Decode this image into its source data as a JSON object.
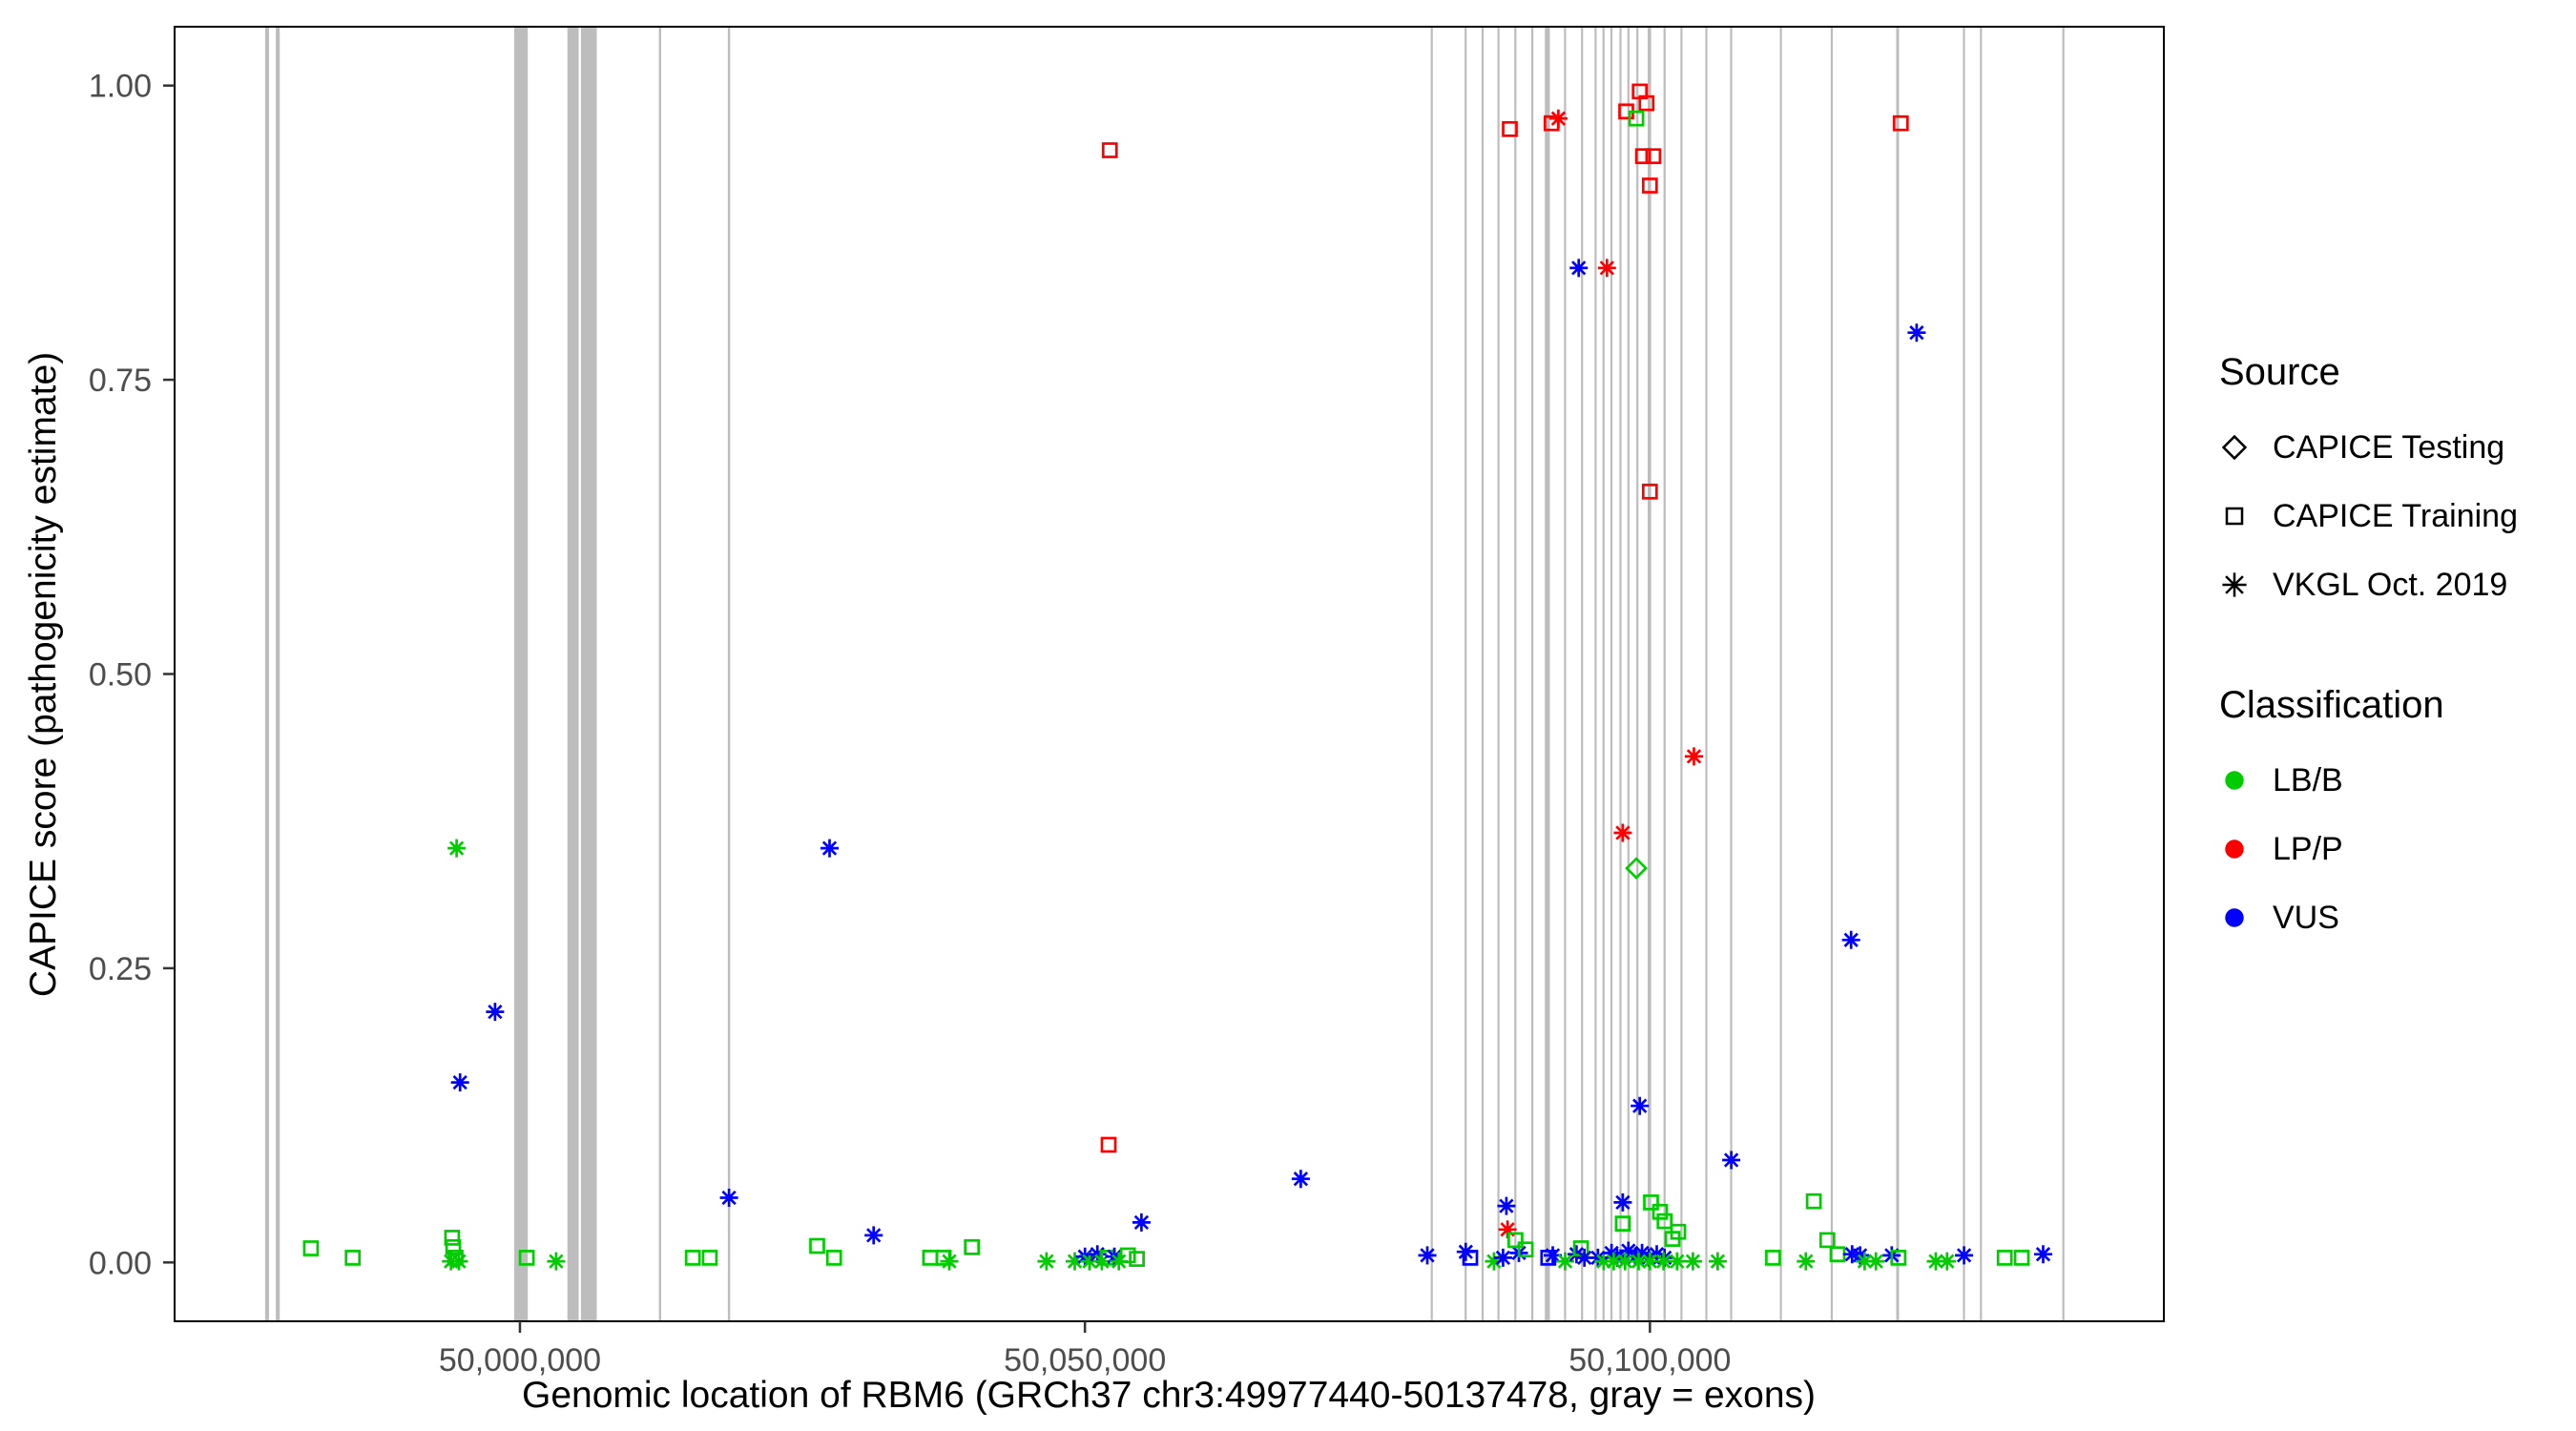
{
  "chart_data": {
    "type": "scatter",
    "xlabel": "Genomic location of RBM6 (GRCh37 chr3:49977440-50137478, gray = exons)",
    "ylabel": "CAPICE score (pathogenicity estimate)",
    "x_domain": [
      49969438,
      50145480
    ],
    "y_domain": [
      -0.05,
      1.05
    ],
    "x_ticks": [
      {
        "value": 50000000,
        "label": "50,000,000"
      },
      {
        "value": 50050000,
        "label": "50,050,000"
      },
      {
        "value": 50100000,
        "label": "50,100,000"
      }
    ],
    "y_ticks": [
      {
        "value": 0.0,
        "label": "0.00"
      },
      {
        "value": 0.25,
        "label": "0.25"
      },
      {
        "value": 0.5,
        "label": "0.50"
      },
      {
        "value": 0.75,
        "label": "0.75"
      },
      {
        "value": 1.0,
        "label": "1.00"
      }
    ],
    "exon_color": "#bdbdbd",
    "exons": [
      [
        49977450,
        350
      ],
      [
        49978400,
        350
      ],
      [
        49999500,
        1200
      ],
      [
        50004200,
        1000
      ],
      [
        50005400,
        1400
      ],
      [
        50012300,
        200
      ],
      [
        50018400,
        200
      ],
      [
        50080600,
        160
      ],
      [
        50083600,
        160
      ],
      [
        50085100,
        160
      ],
      [
        50086500,
        160
      ],
      [
        50088000,
        160
      ],
      [
        50089500,
        160
      ],
      [
        50090700,
        450
      ],
      [
        50092400,
        160
      ],
      [
        50093900,
        160
      ],
      [
        50095100,
        160
      ],
      [
        50095800,
        160
      ],
      [
        50096500,
        160
      ],
      [
        50097300,
        160
      ],
      [
        50098000,
        160
      ],
      [
        50098800,
        160
      ],
      [
        50099800,
        300
      ],
      [
        50101200,
        160
      ],
      [
        50102700,
        160
      ],
      [
        50104900,
        160
      ],
      [
        50107100,
        160
      ],
      [
        50111500,
        160
      ],
      [
        50116000,
        160
      ],
      [
        50121800,
        250
      ],
      [
        50127700,
        160
      ],
      [
        50129200,
        160
      ],
      [
        50136500,
        160
      ]
    ],
    "colors": {
      "b": "#00CC00",
      "p": "#FF0000",
      "v": "#0000FF"
    },
    "shapes": {
      "d": "diamond",
      "s": "square",
      "a": "asterisk"
    },
    "points": [
      [
        50052200,
        0.945,
        "s",
        "p"
      ],
      [
        50087600,
        0.963,
        "s",
        "p"
      ],
      [
        50091300,
        0.968,
        "s",
        "p"
      ],
      [
        50091900,
        0.972,
        "a",
        "p"
      ],
      [
        50097900,
        0.978,
        "s",
        "p"
      ],
      [
        50099100,
        0.995,
        "s",
        "p"
      ],
      [
        50099700,
        0.985,
        "s",
        "p"
      ],
      [
        50098800,
        0.972,
        "s",
        "b"
      ],
      [
        50099400,
        0.94,
        "s",
        "p"
      ],
      [
        50100300,
        0.94,
        "s",
        "p"
      ],
      [
        50100000,
        0.915,
        "s",
        "p"
      ],
      [
        50100000,
        0.655,
        "s",
        "p"
      ],
      [
        50122200,
        0.968,
        "s",
        "p"
      ],
      [
        50096200,
        0.845,
        "a",
        "p"
      ],
      [
        50093700,
        0.845,
        "a",
        "v"
      ],
      [
        50123600,
        0.79,
        "a",
        "v"
      ],
      [
        50097600,
        0.365,
        "a",
        "p"
      ],
      [
        50103900,
        0.43,
        "a",
        "p"
      ],
      [
        50098800,
        0.335,
        "d",
        "b"
      ],
      [
        50027400,
        0.352,
        "a",
        "v"
      ],
      [
        49994400,
        0.352,
        "a",
        "b"
      ],
      [
        49997800,
        0.213,
        "a",
        "v"
      ],
      [
        49994700,
        0.153,
        "a",
        "v"
      ],
      [
        50117800,
        0.274,
        "a",
        "v"
      ],
      [
        50099100,
        0.133,
        "a",
        "v"
      ],
      [
        50107200,
        0.087,
        "a",
        "v"
      ],
      [
        50069100,
        0.071,
        "a",
        "v"
      ],
      [
        50018500,
        0.055,
        "a",
        "v"
      ],
      [
        50052100,
        0.1,
        "s",
        "p"
      ],
      [
        50055000,
        0.034,
        "a",
        "v"
      ],
      [
        50031300,
        0.023,
        "a",
        "v"
      ],
      [
        50087300,
        0.048,
        "a",
        "v"
      ],
      [
        50087400,
        0.028,
        "a",
        "p"
      ],
      [
        50097600,
        0.051,
        "a",
        "v"
      ],
      [
        49981500,
        0.012,
        "s",
        "b"
      ],
      [
        49985200,
        0.004,
        "s",
        "b"
      ],
      [
        49994000,
        0.021,
        "s",
        "b"
      ],
      [
        49994100,
        0.013,
        "s",
        "b"
      ],
      [
        49994300,
        0.004,
        "s",
        "b"
      ],
      [
        49993900,
        0.001,
        "a",
        "b"
      ],
      [
        49994600,
        0.001,
        "a",
        "b"
      ],
      [
        50000600,
        0.004,
        "s",
        "b"
      ],
      [
        50003200,
        0.001,
        "a",
        "b"
      ],
      [
        50015300,
        0.004,
        "s",
        "b"
      ],
      [
        50016800,
        0.004,
        "s",
        "b"
      ],
      [
        50026300,
        0.014,
        "s",
        "b"
      ],
      [
        50027800,
        0.004,
        "s",
        "b"
      ],
      [
        50036300,
        0.004,
        "s",
        "b"
      ],
      [
        50037500,
        0.004,
        "s",
        "b"
      ],
      [
        50038000,
        0.001,
        "a",
        "b"
      ],
      [
        50040000,
        0.013,
        "s",
        "b"
      ],
      [
        50046600,
        0.001,
        "a",
        "b"
      ],
      [
        50049100,
        0.001,
        "a",
        "b"
      ],
      [
        50050000,
        0.005,
        "a",
        "v"
      ],
      [
        50050400,
        0.001,
        "a",
        "b"
      ],
      [
        50051100,
        0.007,
        "a",
        "v"
      ],
      [
        50051500,
        0.001,
        "a",
        "b"
      ],
      [
        50052000,
        0.004,
        "s",
        "b"
      ],
      [
        50052600,
        0.005,
        "a",
        "v"
      ],
      [
        50053000,
        0.001,
        "a",
        "b"
      ],
      [
        50053800,
        0.006,
        "s",
        "b"
      ],
      [
        50054600,
        0.003,
        "s",
        "b"
      ],
      [
        50080300,
        0.006,
        "a",
        "v"
      ],
      [
        50083700,
        0.009,
        "a",
        "v"
      ],
      [
        50084100,
        0.004,
        "s",
        "v"
      ],
      [
        50086200,
        0.001,
        "a",
        "b"
      ],
      [
        50087000,
        0.004,
        "a",
        "v"
      ],
      [
        50088400,
        0.008,
        "a",
        "v"
      ],
      [
        50088100,
        0.019,
        "s",
        "b"
      ],
      [
        50089000,
        0.011,
        "s",
        "b"
      ],
      [
        50091000,
        0.004,
        "s",
        "v"
      ],
      [
        50091400,
        0.006,
        "a",
        "v"
      ],
      [
        50092500,
        0.001,
        "a",
        "b"
      ],
      [
        50093500,
        0.007,
        "a",
        "v"
      ],
      [
        50093900,
        0.012,
        "s",
        "b"
      ],
      [
        50094200,
        0.004,
        "a",
        "v"
      ],
      [
        50095400,
        0.004,
        "a",
        "v"
      ],
      [
        50095900,
        0.001,
        "a",
        "b"
      ],
      [
        50097600,
        0.033,
        "s",
        "b"
      ],
      [
        50100100,
        0.051,
        "s",
        "b"
      ],
      [
        50100900,
        0.043,
        "s",
        "b"
      ],
      [
        50101300,
        0.035,
        "s",
        "b"
      ],
      [
        50102000,
        0.02,
        "s",
        "b"
      ],
      [
        50102500,
        0.026,
        "s",
        "b"
      ],
      [
        50096600,
        0.008,
        "a",
        "v"
      ],
      [
        50097100,
        0.004,
        "a",
        "v"
      ],
      [
        50098100,
        0.01,
        "a",
        "v"
      ],
      [
        50098700,
        0.005,
        "a",
        "v"
      ],
      [
        50099300,
        0.008,
        "a",
        "v"
      ],
      [
        50099900,
        0.004,
        "a",
        "v"
      ],
      [
        50100600,
        0.007,
        "a",
        "v"
      ],
      [
        50101300,
        0.004,
        "a",
        "v"
      ],
      [
        50096800,
        0.001,
        "a",
        "b"
      ],
      [
        50097800,
        0.001,
        "a",
        "b"
      ],
      [
        50099000,
        0.001,
        "a",
        "b"
      ],
      [
        50100000,
        0.001,
        "a",
        "b"
      ],
      [
        50101200,
        0.001,
        "a",
        "b"
      ],
      [
        50102400,
        0.001,
        "a",
        "b"
      ],
      [
        50103800,
        0.001,
        "a",
        "b"
      ],
      [
        50106000,
        0.001,
        "a",
        "b"
      ],
      [
        50110900,
        0.004,
        "s",
        "b"
      ],
      [
        50114500,
        0.052,
        "s",
        "b"
      ],
      [
        50115700,
        0.019,
        "s",
        "b"
      ],
      [
        50116600,
        0.007,
        "s",
        "b"
      ],
      [
        50113800,
        0.001,
        "a",
        "b"
      ],
      [
        50117900,
        0.007,
        "a",
        "v"
      ],
      [
        50118600,
        0.006,
        "a",
        "v"
      ],
      [
        50119000,
        0.001,
        "a",
        "b"
      ],
      [
        50120000,
        0.001,
        "a",
        "b"
      ],
      [
        50121400,
        0.006,
        "a",
        "v"
      ],
      [
        50122000,
        0.004,
        "s",
        "b"
      ],
      [
        50125300,
        0.001,
        "a",
        "b"
      ],
      [
        50126300,
        0.001,
        "a",
        "b"
      ],
      [
        50127800,
        0.006,
        "a",
        "v"
      ],
      [
        50131400,
        0.004,
        "s",
        "b"
      ],
      [
        50132900,
        0.004,
        "s",
        "b"
      ],
      [
        50134800,
        0.007,
        "a",
        "v"
      ]
    ],
    "legend": {
      "source": {
        "title": "Source",
        "items": [
          {
            "label": "CAPICE Testing",
            "shape": "diamond"
          },
          {
            "label": "CAPICE Training",
            "shape": "square"
          },
          {
            "label": "VKGL Oct. 2019",
            "shape": "asterisk"
          }
        ]
      },
      "classification": {
        "title": "Classification",
        "items": [
          {
            "label": "LB/B",
            "color": "#00CC00"
          },
          {
            "label": "LP/P",
            "color": "#FF0000"
          },
          {
            "label": "VUS",
            "color": "#0000FF"
          }
        ]
      }
    }
  }
}
